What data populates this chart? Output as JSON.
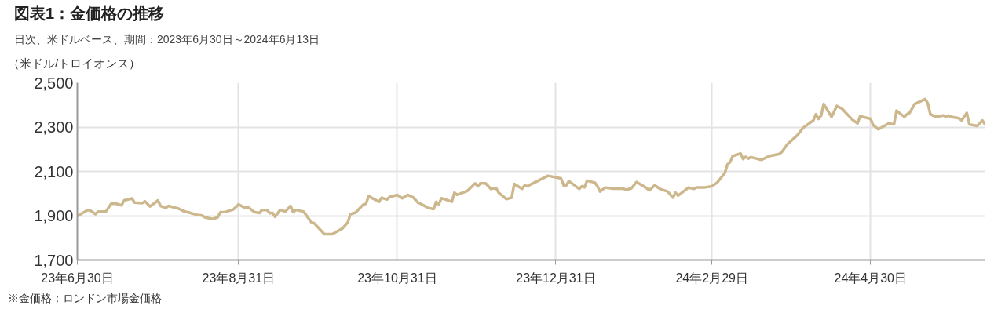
{
  "chart_data": {
    "type": "line",
    "title": "図表1：金価格の推移",
    "subtitle": "日次、米ドルベース、期間：2023年6月30日～2024年6月13日",
    "ylabel": "（米ドル/トロイオンス）",
    "annotations": [
      "※金価格：ロンドン市場金価格"
    ],
    "x": [
      "2023-06-30",
      "2023-07-04",
      "2023-07-05",
      "2023-07-07",
      "2023-07-08",
      "2023-07-11",
      "2023-07-13",
      "2023-07-15",
      "2023-07-17",
      "2023-07-18",
      "2023-07-21",
      "2023-07-22",
      "2023-07-25",
      "2023-07-26",
      "2023-07-28",
      "2023-07-31",
      "2023-08-01",
      "2023-08-03",
      "2023-08-04",
      "2023-08-08",
      "2023-08-10",
      "2023-08-12",
      "2023-08-15",
      "2023-08-17",
      "2023-08-18",
      "2023-08-21",
      "2023-08-23",
      "2023-08-24",
      "2023-08-26",
      "2023-08-29",
      "2023-08-31",
      "2023-09-02",
      "2023-09-04",
      "2023-09-06",
      "2023-09-08",
      "2023-09-09",
      "2023-09-11",
      "2023-09-12",
      "2023-09-13",
      "2023-09-14",
      "2023-09-16",
      "2023-09-18",
      "2023-09-20",
      "2023-09-21",
      "2023-09-22",
      "2023-09-25",
      "2023-09-28",
      "2023-09-29",
      "2023-10-03",
      "2023-10-06",
      "2023-10-10",
      "2023-10-12",
      "2023-10-13",
      "2023-10-15",
      "2023-10-18",
      "2023-10-19",
      "2023-10-20",
      "2023-10-24",
      "2023-10-25",
      "2023-10-27",
      "2023-10-28",
      "2023-10-31",
      "2023-11-02",
      "2023-11-04",
      "2023-11-06",
      "2023-11-08",
      "2023-11-09",
      "2023-11-12",
      "2023-11-14",
      "2023-11-15",
      "2023-11-16",
      "2023-11-17",
      "2023-11-21",
      "2023-11-22",
      "2023-11-23",
      "2023-11-27",
      "2023-11-30",
      "2023-12-01",
      "2023-12-02",
      "2023-12-04",
      "2023-12-06",
      "2023-12-08",
      "2023-12-09",
      "2023-12-12",
      "2023-12-14",
      "2023-12-15",
      "2023-12-18",
      "2023-12-19",
      "2023-12-20",
      "2023-12-28",
      "2024-01-02",
      "2024-01-03",
      "2024-01-04",
      "2024-01-05",
      "2024-01-09",
      "2024-01-10",
      "2024-01-11",
      "2024-01-12",
      "2024-01-15",
      "2024-01-16",
      "2024-01-17",
      "2024-01-19",
      "2024-01-22",
      "2024-01-26",
      "2024-01-27",
      "2024-01-29",
      "2024-01-31",
      "2024-02-03",
      "2024-02-05",
      "2024-02-07",
      "2024-02-09",
      "2024-02-12",
      "2024-02-14",
      "2024-02-15",
      "2024-02-16",
      "2024-02-20",
      "2024-02-22",
      "2024-02-23",
      "2024-02-26",
      "2024-02-29",
      "2024-03-02",
      "2024-03-05",
      "2024-03-06",
      "2024-03-07",
      "2024-03-08",
      "2024-03-11",
      "2024-03-12",
      "2024-03-13",
      "2024-03-14",
      "2024-03-15",
      "2024-03-19",
      "2024-03-22",
      "2024-03-26",
      "2024-03-27",
      "2024-03-29",
      "2024-04-02",
      "2024-04-04",
      "2024-04-08",
      "2024-04-09",
      "2024-04-10",
      "2024-04-11",
      "2024-04-12",
      "2024-04-15",
      "2024-04-17",
      "2024-04-19",
      "2024-04-23",
      "2024-04-25",
      "2024-04-26",
      "2024-04-30",
      "2024-05-01",
      "2024-05-03",
      "2024-05-07",
      "2024-05-09",
      "2024-05-10",
      "2024-05-13",
      "2024-05-14",
      "2024-05-15",
      "2024-05-17",
      "2024-05-21",
      "2024-05-22",
      "2024-05-23",
      "2024-05-25",
      "2024-05-28",
      "2024-05-29",
      "2024-05-30",
      "2024-05-31",
      "2024-06-03",
      "2024-06-04",
      "2024-06-06",
      "2024-06-07",
      "2024-06-10",
      "2024-06-12",
      "2024-06-13"
    ],
    "series": [
      {
        "color": "#cdb88e",
        "values": [
          1898,
          1926,
          1923,
          1907,
          1919,
          1919,
          1954,
          1954,
          1947,
          1969,
          1978,
          1959,
          1957,
          1965,
          1942,
          1969,
          1944,
          1935,
          1944,
          1932,
          1920,
          1914,
          1904,
          1901,
          1893,
          1885,
          1893,
          1916,
          1917,
          1928,
          1951,
          1938,
          1936,
          1917,
          1912,
          1926,
          1926,
          1911,
          1913,
          1895,
          1926,
          1919,
          1944,
          1916,
          1926,
          1919,
          1870,
          1867,
          1817,
          1817,
          1843,
          1870,
          1907,
          1914,
          1951,
          1954,
          1988,
          1963,
          1981,
          1973,
          1984,
          1994,
          1979,
          1994,
          1984,
          1959,
          1954,
          1935,
          1930,
          1963,
          1951,
          1979,
          1963,
          2004,
          1994,
          2012,
          2046,
          2033,
          2046,
          2046,
          2021,
          2025,
          2004,
          1975,
          1981,
          2043,
          2021,
          2037,
          2033,
          2080,
          2068,
          2037,
          2037,
          2056,
          2021,
          2033,
          2028,
          2058,
          2049,
          2033,
          2009,
          2027,
          2022,
          2022,
          2017,
          2023,
          2052,
          2031,
          2015,
          2037,
          2021,
          2009,
          1982,
          2004,
          1991,
          2027,
          2021,
          2027,
          2027,
          2033,
          2049,
          2093,
          2132,
          2142,
          2169,
          2181,
          2156,
          2166,
          2158,
          2164,
          2152,
          2169,
          2179,
          2189,
          2222,
          2265,
          2296,
          2330,
          2358,
          2337,
          2352,
          2404,
          2346,
          2395,
          2383,
          2333,
          2317,
          2349,
          2337,
          2309,
          2290,
          2317,
          2312,
          2374,
          2346,
          2358,
          2364,
          2404,
          2426,
          2407,
          2358,
          2346,
          2352,
          2346,
          2352,
          2346,
          2340,
          2330,
          2364,
          2312,
          2305,
          2330,
          2312
        ]
      }
    ],
    "xlim": [
      "2023-06-30",
      "2024-06-13"
    ],
    "xticks": [
      {
        "value": "2023-06-30",
        "label": "23年6月30日"
      },
      {
        "value": "2023-08-31",
        "label": "23年8月31日"
      },
      {
        "value": "2023-10-31",
        "label": "23年10月31日"
      },
      {
        "value": "2023-12-31",
        "label": "23年12月31日"
      },
      {
        "value": "2024-02-29",
        "label": "24年2月29日"
      },
      {
        "value": "2024-04-30",
        "label": "24年4月30日"
      }
    ],
    "ylim": [
      1700,
      2500
    ],
    "yticks": [
      {
        "value": 1700,
        "label": "1,700"
      },
      {
        "value": 1900,
        "label": "1,900"
      },
      {
        "value": 2100,
        "label": "2,100"
      },
      {
        "value": 2300,
        "label": "2,300"
      },
      {
        "value": 2500,
        "label": "2,500"
      }
    ],
    "grid": true,
    "line_style": "solid"
  }
}
